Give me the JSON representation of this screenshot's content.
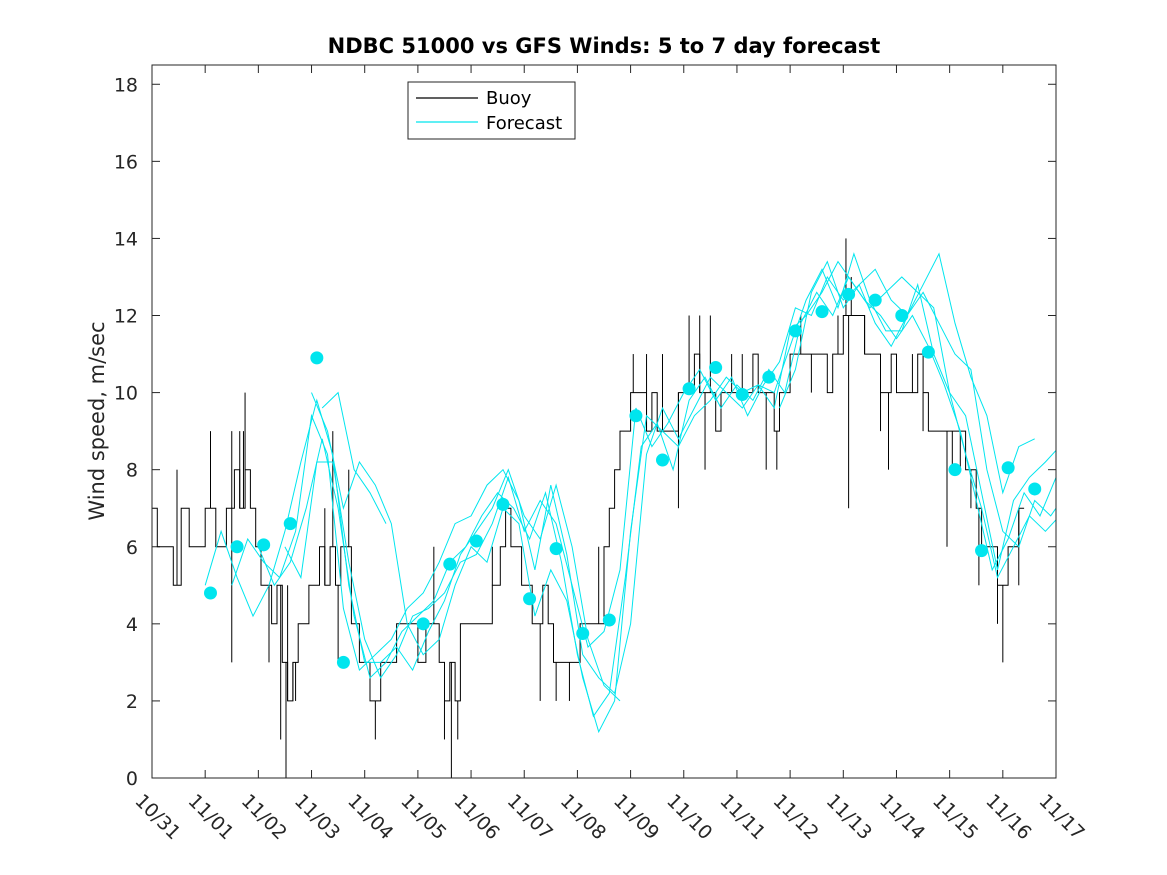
{
  "chart_data": {
    "type": "line",
    "title": "NDBC 51000 vs GFS Winds: 5 to 7 day forecast",
    "xlabel": "",
    "ylabel": "Wind speed, m/sec",
    "xlim": [
      0,
      17
    ],
    "ylim": [
      0,
      18.5
    ],
    "x_tick_values": [
      0,
      1,
      2,
      3,
      4,
      5,
      6,
      7,
      8,
      9,
      10,
      11,
      12,
      13,
      14,
      15,
      16,
      17
    ],
    "x_tick_labels": [
      "10/31",
      "11/01",
      "11/02",
      "11/03",
      "11/04",
      "11/05",
      "11/06",
      "11/07",
      "11/08",
      "11/09",
      "11/10",
      "11/11",
      "11/12",
      "11/13",
      "11/14",
      "11/15",
      "11/16",
      "11/17"
    ],
    "y_ticks": [
      0,
      2,
      4,
      6,
      8,
      10,
      12,
      14,
      16,
      18
    ],
    "legend": {
      "position": "top-center",
      "entries": [
        {
          "name": "Buoy",
          "color": "#000000"
        },
        {
          "name": "Forecast",
          "color": "#00e5ee"
        }
      ]
    },
    "colors": {
      "buoy": "#000000",
      "forecast": "#00e5ee",
      "axis": "#262626"
    },
    "buoy_profile": [
      [
        0.0,
        7
      ],
      [
        0.1,
        6
      ],
      [
        0.3,
        6
      ],
      [
        0.4,
        5
      ],
      [
        0.55,
        7
      ],
      [
        0.7,
        6
      ],
      [
        0.9,
        6
      ],
      [
        1.0,
        7
      ],
      [
        1.2,
        6
      ],
      [
        1.4,
        7
      ],
      [
        1.55,
        8
      ],
      [
        1.65,
        7
      ],
      [
        1.75,
        8
      ],
      [
        1.85,
        7
      ],
      [
        1.95,
        6
      ],
      [
        2.05,
        5
      ],
      [
        2.15,
        5
      ],
      [
        2.25,
        4
      ],
      [
        2.35,
        5
      ],
      [
        2.45,
        3
      ],
      [
        2.55,
        2
      ],
      [
        2.65,
        3
      ],
      [
        2.75,
        4
      ],
      [
        2.85,
        4
      ],
      [
        2.95,
        5
      ],
      [
        3.05,
        5
      ],
      [
        3.15,
        6
      ],
      [
        3.25,
        5
      ],
      [
        3.35,
        6
      ],
      [
        3.45,
        5
      ],
      [
        3.55,
        6
      ],
      [
        3.65,
        6
      ],
      [
        3.75,
        4
      ],
      [
        3.9,
        3
      ],
      [
        4.0,
        3
      ],
      [
        4.1,
        2
      ],
      [
        4.2,
        2
      ],
      [
        4.3,
        3
      ],
      [
        4.45,
        3
      ],
      [
        4.6,
        4
      ],
      [
        4.75,
        4
      ],
      [
        4.9,
        4
      ],
      [
        5.0,
        3
      ],
      [
        5.15,
        4
      ],
      [
        5.3,
        4
      ],
      [
        5.4,
        3
      ],
      [
        5.5,
        2
      ],
      [
        5.6,
        3
      ],
      [
        5.7,
        2
      ],
      [
        5.8,
        4
      ],
      [
        5.95,
        4
      ],
      [
        6.1,
        4
      ],
      [
        6.25,
        4
      ],
      [
        6.4,
        5
      ],
      [
        6.55,
        6
      ],
      [
        6.65,
        7
      ],
      [
        6.75,
        6
      ],
      [
        6.85,
        6
      ],
      [
        6.95,
        5
      ],
      [
        7.05,
        5
      ],
      [
        7.15,
        4
      ],
      [
        7.25,
        4
      ],
      [
        7.35,
        5
      ],
      [
        7.45,
        4
      ],
      [
        7.55,
        3
      ],
      [
        7.65,
        3
      ],
      [
        7.75,
        3
      ],
      [
        7.85,
        3
      ],
      [
        7.95,
        3
      ],
      [
        8.05,
        4
      ],
      [
        8.15,
        4
      ],
      [
        8.25,
        4
      ],
      [
        8.35,
        4
      ],
      [
        8.45,
        4
      ],
      [
        8.5,
        6
      ],
      [
        8.6,
        7
      ],
      [
        8.7,
        8
      ],
      [
        8.8,
        9
      ],
      [
        8.9,
        9
      ],
      [
        9.0,
        10
      ],
      [
        9.15,
        10
      ],
      [
        9.3,
        9
      ],
      [
        9.4,
        10
      ],
      [
        9.5,
        9
      ],
      [
        9.6,
        9
      ],
      [
        9.7,
        9
      ],
      [
        9.8,
        9
      ],
      [
        9.9,
        10
      ],
      [
        10.0,
        10
      ],
      [
        10.1,
        10
      ],
      [
        10.2,
        11
      ],
      [
        10.3,
        10
      ],
      [
        10.4,
        10
      ],
      [
        10.5,
        10
      ],
      [
        10.6,
        9
      ],
      [
        10.7,
        10
      ],
      [
        10.8,
        10
      ],
      [
        10.9,
        10
      ],
      [
        11.0,
        10
      ],
      [
        11.1,
        10
      ],
      [
        11.2,
        10
      ],
      [
        11.3,
        11
      ],
      [
        11.4,
        10
      ],
      [
        11.5,
        10
      ],
      [
        11.6,
        10
      ],
      [
        11.7,
        9
      ],
      [
        11.8,
        10
      ],
      [
        11.9,
        10
      ],
      [
        12.0,
        11
      ],
      [
        12.1,
        11
      ],
      [
        12.2,
        11
      ],
      [
        12.3,
        11
      ],
      [
        12.4,
        11
      ],
      [
        12.5,
        11
      ],
      [
        12.6,
        11
      ],
      [
        12.7,
        10
      ],
      [
        12.8,
        11
      ],
      [
        12.9,
        11
      ],
      [
        13.0,
        12
      ],
      [
        13.1,
        12
      ],
      [
        13.2,
        12
      ],
      [
        13.3,
        12
      ],
      [
        13.4,
        11
      ],
      [
        13.5,
        11
      ],
      [
        13.6,
        11
      ],
      [
        13.7,
        10
      ],
      [
        13.8,
        10
      ],
      [
        13.9,
        11
      ],
      [
        14.0,
        10
      ],
      [
        14.1,
        10
      ],
      [
        14.2,
        10
      ],
      [
        14.3,
        10
      ],
      [
        14.4,
        11
      ],
      [
        14.5,
        10
      ],
      [
        14.6,
        9
      ],
      [
        14.7,
        9
      ],
      [
        14.8,
        9
      ],
      [
        14.9,
        9
      ],
      [
        15.0,
        9
      ],
      [
        15.1,
        9
      ],
      [
        15.2,
        9
      ],
      [
        15.3,
        8
      ],
      [
        15.4,
        8
      ],
      [
        15.5,
        7
      ],
      [
        15.6,
        6
      ],
      [
        15.7,
        6
      ],
      [
        15.8,
        6
      ],
      [
        15.9,
        5
      ],
      [
        16.0,
        5
      ],
      [
        16.1,
        6
      ],
      [
        16.2,
        6
      ],
      [
        16.3,
        7
      ],
      [
        16.4,
        7
      ]
    ],
    "buoy_spikes": [
      [
        0.47,
        8
      ],
      [
        1.1,
        9
      ],
      [
        1.5,
        9
      ],
      [
        1.55,
        8
      ],
      [
        1.65,
        9
      ],
      [
        1.72,
        9
      ],
      [
        1.75,
        10
      ],
      [
        1.5,
        3
      ],
      [
        2.2,
        3
      ],
      [
        2.42,
        1
      ],
      [
        2.52,
        0
      ],
      [
        2.65,
        2
      ],
      [
        2.55,
        5
      ],
      [
        2.7,
        2
      ],
      [
        3.25,
        7
      ],
      [
        3.4,
        9
      ],
      [
        3.5,
        3
      ],
      [
        3.7,
        8
      ],
      [
        4.2,
        1
      ],
      [
        5.3,
        6
      ],
      [
        5.5,
        1
      ],
      [
        5.63,
        0
      ],
      [
        5.75,
        1
      ],
      [
        6.4,
        6
      ],
      [
        6.7,
        7
      ],
      [
        7.3,
        2
      ],
      [
        7.6,
        2
      ],
      [
        7.85,
        2
      ],
      [
        8.4,
        6
      ],
      [
        8.5,
        5
      ],
      [
        9.05,
        11
      ],
      [
        9.3,
        11
      ],
      [
        9.6,
        11
      ],
      [
        9.9,
        7
      ],
      [
        10.1,
        12
      ],
      [
        10.3,
        12
      ],
      [
        10.4,
        8
      ],
      [
        10.5,
        12
      ],
      [
        10.9,
        11
      ],
      [
        11.1,
        11
      ],
      [
        11.35,
        11
      ],
      [
        11.55,
        8
      ],
      [
        11.75,
        8
      ],
      [
        12.2,
        12
      ],
      [
        12.4,
        10
      ],
      [
        12.9,
        12
      ],
      [
        13.05,
        14
      ],
      [
        13.1,
        7
      ],
      [
        13.15,
        13
      ],
      [
        13.4,
        12
      ],
      [
        13.7,
        9
      ],
      [
        13.85,
        8
      ],
      [
        14.3,
        11
      ],
      [
        14.5,
        9
      ],
      [
        14.95,
        6
      ],
      [
        15.05,
        8
      ],
      [
        15.2,
        8
      ],
      [
        15.4,
        7
      ],
      [
        15.55,
        5
      ],
      [
        15.9,
        4
      ],
      [
        16.0,
        3
      ],
      [
        16.3,
        5
      ],
      [
        16.45,
        7
      ]
    ],
    "forecast_markers": [
      [
        1.1,
        4.8
      ],
      [
        1.6,
        6.0
      ],
      [
        2.1,
        6.05
      ],
      [
        2.6,
        6.6
      ],
      [
        3.1,
        10.9
      ],
      [
        3.6,
        3.0
      ],
      [
        5.1,
        4.0
      ],
      [
        5.6,
        5.55
      ],
      [
        6.1,
        6.15
      ],
      [
        6.6,
        7.1
      ],
      [
        7.1,
        4.65
      ],
      [
        7.6,
        5.95
      ],
      [
        8.1,
        3.75
      ],
      [
        8.6,
        4.1
      ],
      [
        9.1,
        9.4
      ],
      [
        9.6,
        8.25
      ],
      [
        10.1,
        10.1
      ],
      [
        10.6,
        10.65
      ],
      [
        11.1,
        9.95
      ],
      [
        11.6,
        10.4
      ],
      [
        12.1,
        11.6
      ],
      [
        12.6,
        12.1
      ],
      [
        13.1,
        12.55
      ],
      [
        13.6,
        12.4
      ],
      [
        14.1,
        12.0
      ],
      [
        14.6,
        11.05
      ],
      [
        15.1,
        8.0
      ],
      [
        15.6,
        5.9
      ],
      [
        16.1,
        8.05
      ],
      [
        16.6,
        7.5
      ]
    ],
    "forecast_series": [
      {
        "name": "Forecast 1",
        "x": [
          1.0,
          1.3,
          1.6,
          1.9,
          2.2,
          2.5,
          2.8,
          3.1,
          3.4,
          3.7,
          4.0,
          4.3,
          4.6,
          4.9,
          5.2,
          5.5,
          5.8,
          6.1,
          6.4,
          6.7,
          7.0,
          7.3,
          7.6,
          7.9,
          8.2,
          8.5,
          8.8
        ],
        "y": [
          5.0,
          6.4,
          5.2,
          4.2,
          5.0,
          6.4,
          8.2,
          9.8,
          8.4,
          5.0,
          3.0,
          3.0,
          3.4,
          2.8,
          3.8,
          4.6,
          5.8,
          6.4,
          7.0,
          8.0,
          6.8,
          6.2,
          7.6,
          6.0,
          3.6,
          2.4,
          2.0
        ]
      },
      {
        "name": "Forecast 2",
        "x": [
          1.5,
          1.8,
          2.1,
          2.4,
          2.7,
          3.0,
          3.3,
          3.6,
          3.9,
          4.2,
          4.5,
          4.8,
          5.1,
          5.4,
          5.7,
          6.0,
          6.3,
          6.6,
          6.9,
          7.2,
          7.5,
          7.8,
          8.1,
          8.4,
          8.7,
          9.0,
          9.3,
          9.6,
          9.9,
          10.2,
          10.5,
          10.8,
          11.1,
          11.4,
          11.7,
          12.0,
          12.3,
          12.6,
          12.9,
          13.2,
          13.5,
          13.8,
          14.1,
          14.4,
          14.7,
          15.0,
          15.3,
          15.6,
          15.9,
          16.2,
          16.5,
          16.8,
          17.0
        ],
        "y": [
          5.0,
          6.2,
          5.6,
          5.2,
          6.4,
          9.4,
          8.4,
          4.4,
          2.8,
          3.2,
          3.6,
          4.4,
          4.8,
          5.6,
          6.6,
          6.8,
          7.6,
          8.0,
          7.2,
          5.4,
          7.6,
          5.8,
          3.2,
          2.6,
          2.2,
          4.0,
          8.4,
          9.6,
          8.8,
          9.6,
          10.4,
          10.0,
          9.6,
          10.2,
          10.0,
          11.2,
          12.4,
          13.2,
          12.2,
          13.6,
          12.4,
          11.6,
          11.6,
          12.8,
          11.0,
          10.0,
          8.4,
          7.0,
          5.2,
          6.0,
          6.8,
          6.4,
          6.7
        ]
      },
      {
        "name": "Forecast 3",
        "x": [
          2.0,
          2.3,
          2.6,
          2.9,
          3.2,
          3.5,
          3.8,
          4.1,
          4.4,
          4.7,
          5.0,
          5.3,
          5.6,
          5.9,
          6.2,
          6.5,
          6.8,
          7.1,
          7.4,
          7.7,
          8.0,
          8.3,
          8.6,
          8.9,
          9.2,
          9.5,
          9.8,
          10.1,
          10.4,
          10.7,
          11.0,
          11.3,
          11.6,
          11.9,
          12.2,
          12.5,
          12.8,
          13.1,
          13.4,
          13.7,
          14.0,
          14.3,
          14.6,
          14.9,
          15.2,
          15.5,
          15.8,
          16.1,
          16.4,
          16.7,
          17.0
        ],
        "y": [
          6.0,
          5.0,
          5.6,
          7.0,
          8.8,
          7.0,
          4.2,
          2.6,
          3.0,
          3.8,
          4.2,
          4.6,
          5.6,
          6.0,
          6.8,
          7.4,
          7.0,
          6.2,
          7.4,
          5.6,
          3.2,
          1.6,
          2.2,
          5.2,
          8.6,
          9.2,
          8.0,
          9.8,
          10.4,
          9.6,
          10.2,
          9.8,
          10.6,
          10.0,
          11.8,
          12.6,
          12.0,
          13.0,
          12.4,
          12.0,
          11.4,
          12.0,
          11.2,
          10.2,
          9.0,
          7.2,
          5.4,
          6.2,
          7.4,
          6.8,
          7.8
        ]
      },
      {
        "name": "Forecast 4",
        "x": [
          2.5,
          2.8,
          3.1,
          3.4,
          3.7,
          4.0,
          4.3,
          4.6,
          4.9,
          5.2,
          5.5,
          5.8,
          6.1,
          6.4,
          6.7,
          7.0,
          7.3,
          7.6,
          7.9,
          8.2,
          8.5,
          8.8,
          9.1,
          9.4,
          9.7,
          10.0,
          10.3,
          10.6,
          10.9,
          11.2,
          11.5,
          11.8,
          12.1,
          12.4,
          12.7,
          13.0,
          13.3,
          13.6,
          13.9,
          14.2,
          14.5,
          14.8,
          15.1,
          15.4,
          15.7,
          16.0,
          16.3,
          16.6,
          16.9,
          17.0
        ],
        "y": [
          6.0,
          5.2,
          8.2,
          8.2,
          5.6,
          3.6,
          2.6,
          3.2,
          4.2,
          4.4,
          4.8,
          5.6,
          5.8,
          6.6,
          7.8,
          6.4,
          7.2,
          6.6,
          5.0,
          3.4,
          3.8,
          5.4,
          9.6,
          8.6,
          9.2,
          10.0,
          10.6,
          9.8,
          10.4,
          9.4,
          10.2,
          10.8,
          12.2,
          12.0,
          13.0,
          12.4,
          12.8,
          11.8,
          11.2,
          12.0,
          12.6,
          11.8,
          11.0,
          10.6,
          8.0,
          6.4,
          6.0,
          7.2,
          6.8,
          7.0
        ]
      },
      {
        "name": "Forecast 5",
        "x": [
          3.0,
          3.3,
          3.6,
          3.9,
          4.2,
          4.5,
          4.8,
          5.1,
          5.4,
          5.7,
          6.0,
          6.3,
          6.6,
          6.9,
          7.2,
          7.5,
          7.8,
          8.1,
          8.4,
          8.7,
          9.0,
          9.3,
          9.6,
          9.9,
          10.2,
          10.5,
          10.8,
          11.1,
          11.4,
          11.7,
          12.0,
          12.3,
          12.6,
          12.9,
          13.2,
          13.5,
          13.8,
          14.1,
          14.4,
          14.7,
          15.0,
          15.3,
          15.6,
          15.9,
          16.2,
          16.5,
          16.8,
          17.0
        ],
        "y": [
          10.0,
          9.0,
          7.0,
          8.2,
          7.6,
          6.6,
          4.0,
          3.2,
          3.6,
          5.0,
          6.0,
          5.6,
          7.0,
          6.6,
          4.2,
          5.4,
          4.6,
          2.6,
          1.2,
          2.0,
          6.4,
          9.4,
          9.0,
          8.6,
          9.4,
          9.8,
          10.4,
          10.0,
          10.2,
          9.6,
          11.6,
          12.0,
          12.6,
          13.4,
          12.8,
          12.2,
          12.6,
          13.0,
          12.6,
          12.2,
          10.0,
          9.4,
          7.4,
          5.4,
          7.2,
          7.8,
          8.2,
          8.5
        ]
      },
      {
        "name": "Forecast 6",
        "x": [
          3.2,
          3.5,
          3.8,
          4.1,
          4.4
        ],
        "y": [
          9.6,
          10.0,
          8.0,
          7.4,
          6.6
        ]
      },
      {
        "name": "Forecast 7",
        "x": [
          11.8,
          12.1,
          12.4,
          12.7,
          13.0,
          13.3,
          13.6,
          13.9,
          14.2,
          14.5,
          14.8,
          15.1,
          15.4,
          15.7,
          16.0,
          16.3,
          16.6
        ],
        "y": [
          9.6,
          10.6,
          12.6,
          13.4,
          12.2,
          12.8,
          13.2,
          12.4,
          12.0,
          12.8,
          13.6,
          11.8,
          10.4,
          9.4,
          7.4,
          8.6,
          8.8
        ]
      }
    ]
  }
}
